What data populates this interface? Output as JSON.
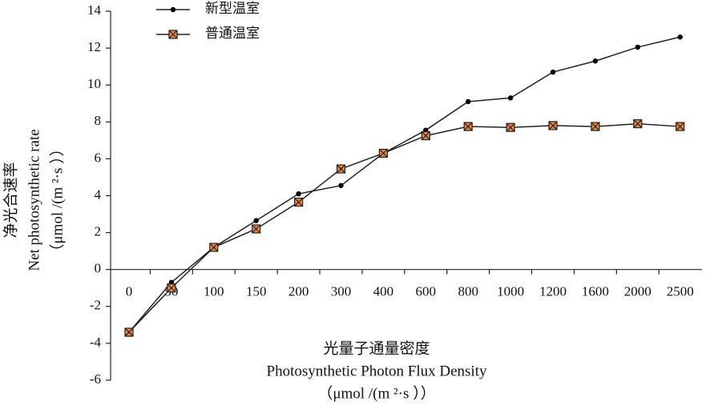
{
  "chart_data": {
    "type": "line",
    "y_label": [
      "净光合速率",
      "Net photosynthetic rate",
      "（μmol /(m ²·s ））"
    ],
    "x_label": [
      "光量子通量密度",
      "Photosynthetic Photon Flux Density",
      "（μmol /(m ²·s ））"
    ],
    "categories": [
      "0",
      "50",
      "100",
      "150",
      "200",
      "300",
      "400",
      "600",
      "800",
      "1000",
      "1200",
      "1600",
      "2000",
      "2500"
    ],
    "series": [
      {
        "name": "新型温室",
        "color": "#000000",
        "marker": "circle",
        "values": [
          -3.4,
          -0.7,
          1.2,
          2.65,
          4.1,
          4.55,
          6.3,
          7.55,
          9.1,
          9.3,
          10.7,
          11.3,
          12.05,
          12.6
        ]
      },
      {
        "name": "普通温室",
        "color": "#f0883a",
        "marker": "square-x",
        "values": [
          -3.4,
          -1.0,
          1.2,
          2.2,
          3.65,
          5.45,
          6.3,
          7.25,
          7.75,
          7.7,
          7.8,
          7.75,
          7.9,
          7.75
        ]
      }
    ],
    "ylim": [
      -6,
      14
    ],
    "yticks": [
      -6,
      -4,
      -2,
      0,
      2,
      4,
      6,
      8,
      10,
      12,
      14
    ],
    "grid": false
  }
}
